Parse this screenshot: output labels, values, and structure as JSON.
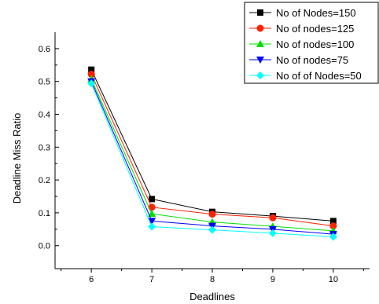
{
  "chart_data": {
    "type": "line",
    "title": "",
    "xlabel": "Deadlines",
    "ylabel": "Deadline Miss Ratio",
    "x": [
      6,
      7,
      8,
      9,
      10
    ],
    "xlim": [
      5.4,
      10.6
    ],
    "ylim": [
      -0.07,
      0.65
    ],
    "xticks": [
      6,
      7,
      8,
      9,
      10
    ],
    "yticks": [
      0.0,
      0.1,
      0.2,
      0.3,
      0.4,
      0.5,
      0.6
    ],
    "grid": false,
    "legend_position": "top-right",
    "series": [
      {
        "name": "No of Nodes=150",
        "marker": "square",
        "color": "#000000",
        "values": [
          0.536,
          0.142,
          0.103,
          0.09,
          0.075
        ]
      },
      {
        "name": "No of nodes=125",
        "marker": "circle",
        "color": "#ff2000",
        "values": [
          0.522,
          0.117,
          0.096,
          0.085,
          0.06
        ]
      },
      {
        "name": "No of nodes=100",
        "marker": "triangle-up",
        "color": "#00e000",
        "values": [
          0.507,
          0.097,
          0.072,
          0.059,
          0.045
        ]
      },
      {
        "name": "No of nodes=75",
        "marker": "triangle-down",
        "color": "#0000ff",
        "values": [
          0.5,
          0.075,
          0.06,
          0.05,
          0.035
        ]
      },
      {
        "name": "No of of Nodes=50",
        "marker": "diamond",
        "color": "#00ffff",
        "values": [
          0.494,
          0.058,
          0.048,
          0.038,
          0.027
        ]
      }
    ]
  }
}
